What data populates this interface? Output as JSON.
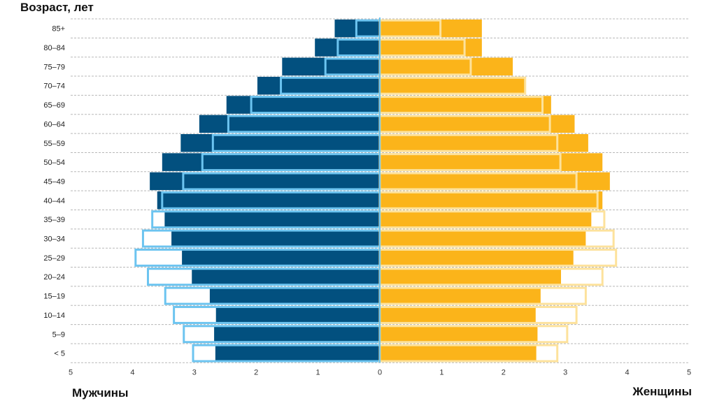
{
  "chart_data": {
    "type": "bar",
    "title": "Возраст, лет",
    "left_label": "Мужчины",
    "right_label": "Женщины",
    "categories": [
      "85+",
      "80–84",
      "75–79",
      "70–74",
      "65–69",
      "60–64",
      "55–59",
      "50–54",
      "45–49",
      "40–44",
      "35–39",
      "30–34",
      "25–29",
      "20–24",
      "15–19",
      "10–14",
      "5–9",
      "< 5"
    ],
    "xlim": [
      -5,
      5
    ],
    "xticks": [
      "5",
      "4",
      "3",
      "2",
      "1",
      "0",
      "1",
      "2",
      "3",
      "4",
      "5"
    ],
    "grid": "horizontal dashed",
    "series": [
      {
        "side": "male",
        "style": "filled",
        "color": "#02507f",
        "values": [
          0.73,
          1.05,
          1.58,
          1.98,
          2.48,
          2.92,
          3.22,
          3.52,
          3.72,
          3.6,
          3.48,
          3.37,
          3.2,
          3.04,
          2.75,
          2.65,
          2.68,
          2.66
        ]
      },
      {
        "side": "male",
        "style": "outline",
        "color": "#6cc4f0",
        "values": [
          0.38,
          0.68,
          0.88,
          1.6,
          2.08,
          2.45,
          2.7,
          2.87,
          3.18,
          3.52,
          3.68,
          3.83,
          3.95,
          3.75,
          3.47,
          3.33,
          3.17,
          3.02
        ]
      },
      {
        "side": "female",
        "style": "filled",
        "color": "#fbb41a",
        "values": [
          1.65,
          1.65,
          2.15,
          2.35,
          2.77,
          3.15,
          3.37,
          3.6,
          3.72,
          3.6,
          3.42,
          3.33,
          3.13,
          2.93,
          2.6,
          2.52,
          2.55,
          2.53
        ]
      },
      {
        "side": "female",
        "style": "outline",
        "color": "#fde29c",
        "values": [
          0.98,
          1.37,
          1.47,
          2.35,
          2.63,
          2.75,
          2.87,
          2.92,
          3.18,
          3.52,
          3.63,
          3.78,
          3.82,
          3.6,
          3.33,
          3.18,
          3.03,
          2.87
        ]
      }
    ]
  }
}
